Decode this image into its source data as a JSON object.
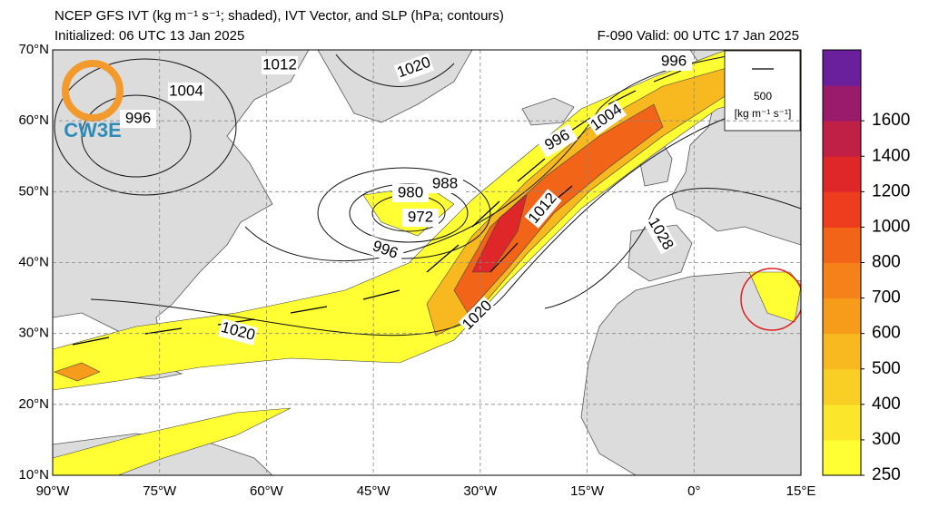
{
  "header": {
    "title": "NCEP GFS IVT (kg m⁻¹ s⁻¹; shaded), IVT Vector, and SLP (hPa; contours)",
    "initialized": "Initialized: 06 UTC 13 Jan 2025",
    "valid": "F-090  Valid: 00 UTC 17 Jan 2025"
  },
  "map": {
    "lat_labels": [
      "70°N",
      "60°N",
      "50°N",
      "40°N",
      "30°N",
      "20°N",
      "10°N"
    ],
    "lon_labels": [
      "90°W",
      "75°W",
      "60°W",
      "45°W",
      "30°W",
      "15°W",
      "0°",
      "15°E"
    ],
    "contour_labels": [
      1012,
      1020,
      996,
      1004,
      996,
      988,
      980,
      972,
      996,
      1020,
      1020,
      1012,
      1004,
      996,
      1028
    ],
    "logo": "CW3E",
    "vector_key": {
      "value": "500",
      "units": "[kg m⁻¹ s⁻¹]"
    }
  },
  "colorbar": {
    "ticks": [
      250,
      300,
      400,
      500,
      600,
      700,
      800,
      1000,
      1200,
      1400,
      1600
    ],
    "colors": [
      "#ffff33",
      "#fbe62b",
      "#f9cf25",
      "#f8b81f",
      "#f79c1a",
      "#f5811a",
      "#f26519",
      "#ee3d1e",
      "#df2729",
      "#c02046",
      "#9a1b6b",
      "#6a209d"
    ]
  }
}
